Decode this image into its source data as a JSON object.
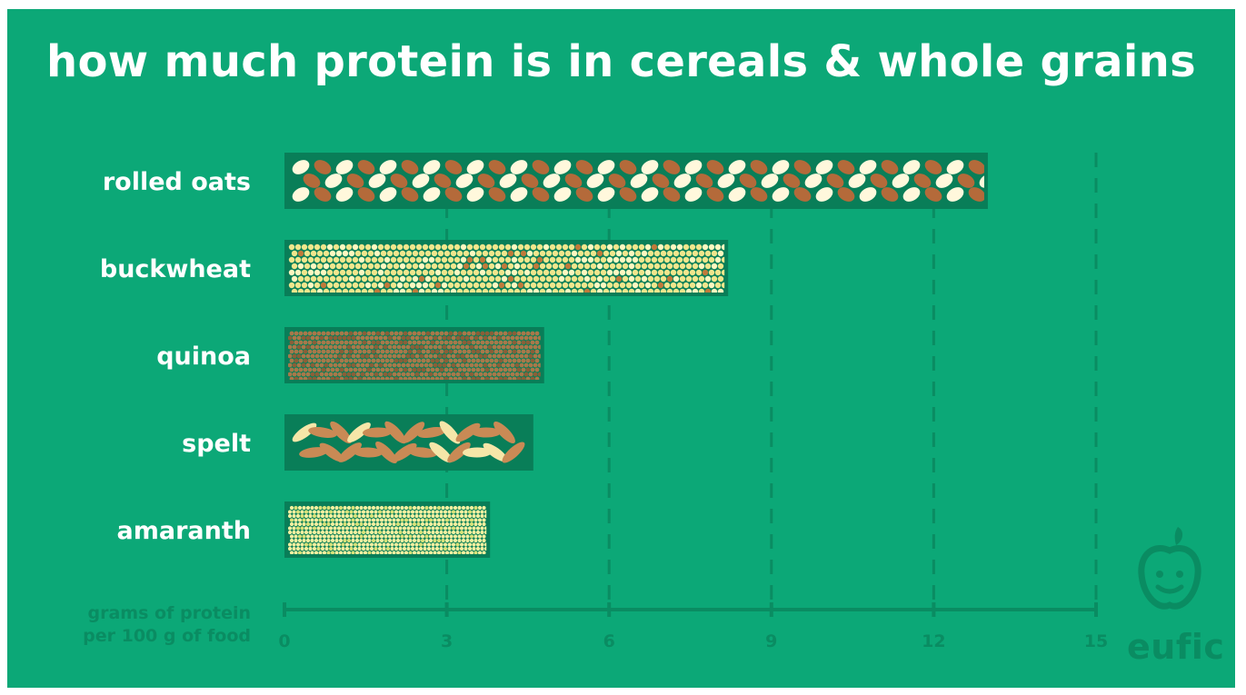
{
  "title": "how much protein is in cereals & whole grains",
  "chart_data": {
    "type": "bar",
    "orientation": "horizontal",
    "title": "how much protein is in cereals & whole grains",
    "categories": [
      "rolled oats",
      "buckwheat",
      "quinoa",
      "spelt",
      "amaranth"
    ],
    "values": [
      13.0,
      8.2,
      4.8,
      4.6,
      3.8
    ],
    "xlabel": [
      "grams of protein",
      "per 100 g of food"
    ],
    "xticks": [
      0,
      3,
      6,
      9,
      12,
      15
    ],
    "xlim": [
      0,
      15
    ],
    "grid": "vertical dashed",
    "colors": {
      "background": "#0ca877",
      "bar_background": "#097e58",
      "oat_light": "#fff8dc",
      "oat_brown": "#b46a3a",
      "buckwheat": "#f0e68c",
      "buckwheat_dot": "#c07a3a",
      "quinoa": "#a8784a",
      "spelt": "#c98a55",
      "spelt_light": "#f5e6a8",
      "amaranth": "#f3efa0",
      "axis": "#0a8c62"
    }
  },
  "logo": {
    "text": "eufic",
    "icon": "apple-face-icon"
  }
}
